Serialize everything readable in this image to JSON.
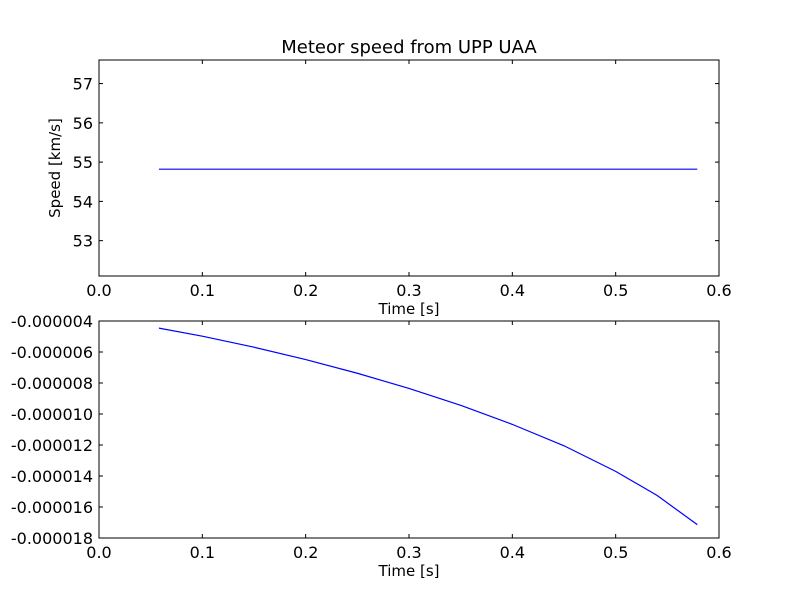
{
  "chart_data": [
    {
      "type": "line",
      "title": "Meteor speed from  UPP UAA",
      "xlabel": "Time [s]",
      "ylabel": "Speed [km/s]",
      "xlim": [
        0.0,
        0.6
      ],
      "ylim": [
        52.1,
        57.6
      ],
      "xticks": [
        0.0,
        0.1,
        0.2,
        0.3,
        0.4,
        0.5,
        0.6
      ],
      "xtick_labels": [
        "0.0",
        "0.1",
        "0.2",
        "0.3",
        "0.4",
        "0.5",
        "0.6"
      ],
      "yticks": [
        53,
        54,
        55,
        56,
        57
      ],
      "ytick_labels": [
        "53",
        "54",
        "55",
        "56",
        "57"
      ],
      "grid": false,
      "series": [
        {
          "color": "#0000ff",
          "x": [
            0.058,
            0.1,
            0.2,
            0.3,
            0.4,
            0.5,
            0.579
          ],
          "y": [
            54.82,
            54.82,
            54.82,
            54.82,
            54.82,
            54.82,
            54.82
          ]
        }
      ]
    },
    {
      "type": "line",
      "title": "",
      "xlabel": "Time [s]",
      "ylabel": "",
      "xlim": [
        0.0,
        0.6
      ],
      "ylim": [
        -1.8e-05,
        -4e-06
      ],
      "xticks": [
        0.0,
        0.1,
        0.2,
        0.3,
        0.4,
        0.5,
        0.6
      ],
      "xtick_labels": [
        "0.0",
        "0.1",
        "0.2",
        "0.3",
        "0.4",
        "0.5",
        "0.6"
      ],
      "yticks": [
        -4e-06,
        -6e-06,
        -8e-06,
        -1e-05,
        -1.2e-05,
        -1.4e-05,
        -1.6e-05,
        -1.8e-05
      ],
      "ytick_labels": [
        "-0.000004",
        "-0.000006",
        "-0.000008",
        "-0.000010",
        "-0.000012",
        "-0.000014",
        "-0.000016",
        "-0.000018"
      ],
      "grid": false,
      "series": [
        {
          "color": "#0000ff",
          "x": [
            0.058,
            0.1,
            0.15,
            0.2,
            0.25,
            0.3,
            0.35,
            0.4,
            0.45,
            0.5,
            0.54,
            0.579
          ],
          "y": [
            -4.46e-06,
            -4.98e-06,
            -5.69e-06,
            -6.49e-06,
            -7.37e-06,
            -8.35e-06,
            -9.44e-06,
            -1.067e-05,
            -1.205e-05,
            -1.37e-05,
            -1.525e-05,
            -1.714e-05
          ]
        }
      ]
    }
  ]
}
